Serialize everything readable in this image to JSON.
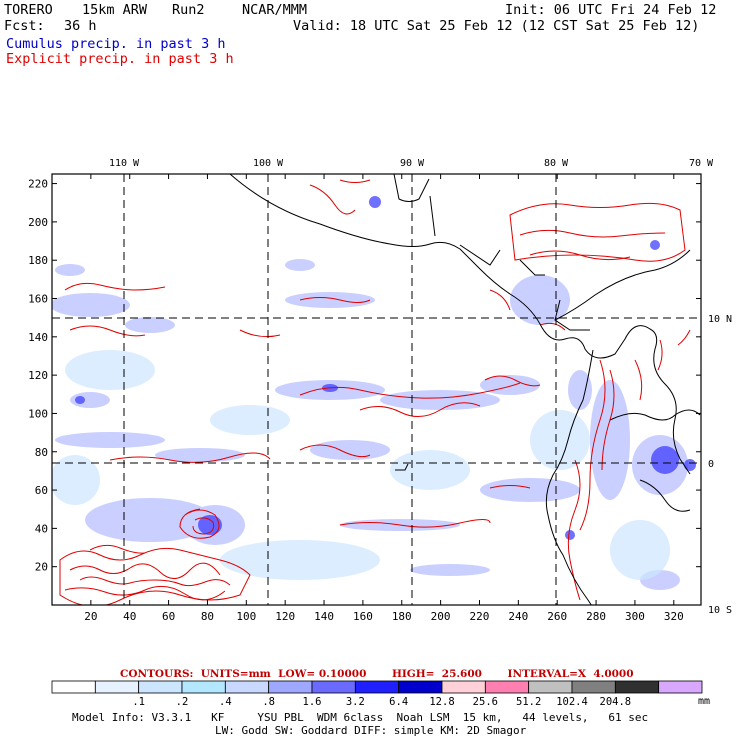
{
  "header": {
    "model": "TORERO",
    "resolution": "15km ARW",
    "run": "Run2",
    "org": "NCAR/MMM",
    "init": "Init: 06 UTC Fri 24 Feb 12",
    "fcst_label": "Fcst:",
    "fcst_value": "36 h",
    "valid": "Valid: 18 UTC Sat 25 Feb 12 (12 CST Sat 25 Feb 12)",
    "field1": "Cumulus precip. in past 3 h",
    "field2": "Explicit precip. in past 3 h"
  },
  "map": {
    "lon_labels": [
      "110 W",
      "100 W",
      "90 W",
      "80 W",
      "70 W"
    ],
    "lat_labels": [
      "10 N",
      "0",
      "10 S"
    ],
    "y_ticks": [
      "220",
      "200",
      "180",
      "160",
      "140",
      "120",
      "100",
      "80",
      "60",
      "40",
      "20"
    ],
    "x_ticks": [
      "20",
      "40",
      "60",
      "80",
      "100",
      "120",
      "140",
      "160",
      "180",
      "200",
      "220",
      "240",
      "260",
      "280",
      "300",
      "320"
    ],
    "x_range": [
      0,
      334
    ],
    "y_range": [
      0,
      225
    ],
    "colors": {
      "contour": "#e00000",
      "grid": "#000000",
      "coast": "#000000"
    }
  },
  "contour_info": "CONTOURS:  UNITS=mm  LOW= 0.10000       HIGH=  25.600       INTERVAL=X  4.0000",
  "colorbar": {
    "labels": [
      ".1",
      ".2",
      ".4",
      ".8",
      "1.6",
      "3.2",
      "6.4",
      "12.8",
      "25.6",
      "51.2",
      "102.4",
      "204.8"
    ],
    "colors": [
      "#ffffff",
      "#e6f2ff",
      "#cce6ff",
      "#b3e6ff",
      "#c8d8ff",
      "#9ea8ff",
      "#6a6aff",
      "#2020ff",
      "#0000cc",
      "#ffd0d8",
      "#ff80b0",
      "#c0c0c0",
      "#808080",
      "#303030",
      "#d8a8ff"
    ],
    "unit": "mm"
  },
  "footer": {
    "line1": "Model Info: V3.3.1   KF     YSU PBL  WDM 6class  Noah LSM  15 km,   44 levels,   61 sec",
    "line2": "LW: Godd SW: Goddard DIFF: simple KM: 2D Smagor"
  }
}
